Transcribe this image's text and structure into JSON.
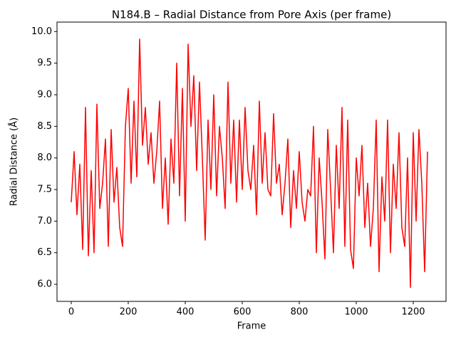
{
  "chart_data": {
    "type": "line",
    "title": "N184.B – Radial Distance from Pore Axis (per frame)",
    "x_label": "Frame",
    "y_label": "Radial Distance (Å)",
    "x": [
      0,
      10,
      20,
      30,
      40,
      50,
      60,
      70,
      80,
      90,
      100,
      110,
      120,
      130,
      140,
      150,
      160,
      170,
      180,
      190,
      200,
      210,
      220,
      230,
      240,
      250,
      260,
      270,
      280,
      290,
      300,
      310,
      320,
      330,
      340,
      350,
      360,
      370,
      380,
      390,
      400,
      410,
      420,
      430,
      440,
      450,
      460,
      470,
      480,
      490,
      500,
      510,
      520,
      530,
      540,
      550,
      560,
      570,
      580,
      590,
      600,
      610,
      620,
      630,
      640,
      650,
      660,
      670,
      680,
      690,
      700,
      710,
      720,
      730,
      740,
      750,
      760,
      770,
      780,
      790,
      800,
      810,
      820,
      830,
      840,
      850,
      860,
      870,
      880,
      890,
      900,
      910,
      920,
      930,
      940,
      950,
      960,
      970,
      980,
      990,
      1000,
      1010,
      1020,
      1030,
      1040,
      1050,
      1060,
      1070,
      1080,
      1090,
      1100,
      1110,
      1120,
      1130,
      1140,
      1150,
      1160,
      1170,
      1180,
      1190,
      1200,
      1210,
      1220,
      1230,
      1240,
      1250
    ],
    "series": [
      {
        "name": "N184.B",
        "color": "#ff0000",
        "values": [
          7.3,
          8.1,
          7.1,
          7.9,
          6.55,
          8.8,
          6.45,
          7.8,
          6.5,
          8.85,
          7.2,
          7.6,
          8.3,
          6.6,
          8.45,
          7.3,
          7.85,
          6.9,
          6.6,
          8.5,
          9.1,
          7.6,
          8.9,
          7.7,
          9.88,
          8.2,
          8.8,
          7.9,
          8.4,
          7.6,
          8.1,
          8.9,
          7.2,
          8.0,
          6.95,
          8.3,
          7.6,
          9.5,
          7.4,
          9.1,
          7.0,
          9.8,
          8.5,
          9.3,
          7.8,
          9.2,
          8.0,
          6.7,
          8.6,
          7.5,
          9.0,
          7.4,
          8.5,
          8.0,
          7.2,
          9.2,
          7.6,
          8.6,
          7.3,
          8.6,
          7.5,
          8.8,
          7.8,
          7.5,
          8.2,
          7.1,
          8.9,
          7.6,
          8.4,
          7.5,
          7.4,
          8.7,
          7.6,
          7.9,
          7.1,
          7.6,
          8.3,
          6.9,
          7.8,
          7.2,
          8.1,
          7.3,
          7.0,
          7.5,
          7.4,
          8.5,
          6.5,
          8.0,
          7.3,
          6.4,
          8.45,
          7.5,
          6.5,
          8.2,
          7.2,
          8.8,
          6.6,
          8.6,
          6.55,
          6.25,
          8.0,
          7.4,
          8.2,
          6.9,
          7.6,
          6.6,
          7.2,
          8.6,
          6.2,
          7.7,
          7.0,
          8.6,
          6.5,
          7.9,
          7.2,
          8.4,
          6.9,
          6.6,
          8.0,
          5.95,
          8.4,
          7.0,
          8.45,
          7.6,
          6.2,
          8.1
        ]
      }
    ],
    "xlim": [
      -50,
      1315
    ],
    "ylim": [
      5.73,
      10.15
    ],
    "xticks": [
      0,
      200,
      400,
      600,
      800,
      1000,
      1200
    ],
    "yticks": [
      {
        "value": 6,
        "label": "6.0"
      },
      {
        "value": 6.5,
        "label": "6.5"
      },
      {
        "value": 7,
        "label": "7.0"
      },
      {
        "value": 7.5,
        "label": "7.5"
      },
      {
        "value": 8,
        "label": "8.0"
      },
      {
        "value": 8.5,
        "label": "8.5"
      },
      {
        "value": 9,
        "label": "9.0"
      },
      {
        "value": 9.5,
        "label": "9.5"
      },
      {
        "value": 10,
        "label": "10.0"
      }
    ]
  }
}
